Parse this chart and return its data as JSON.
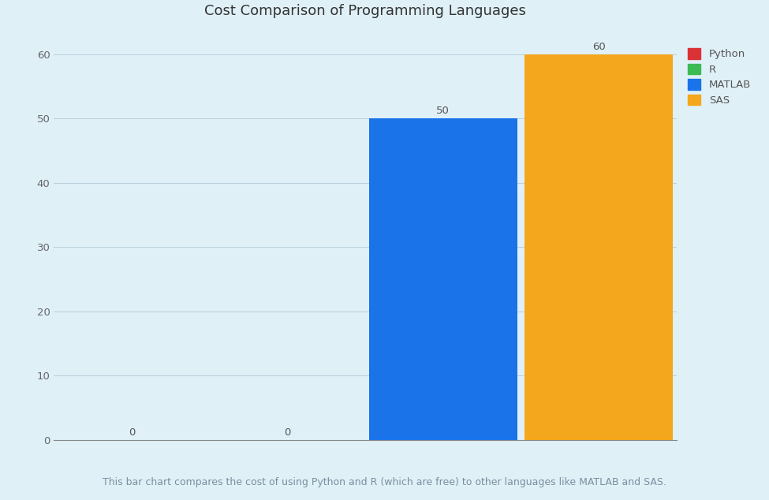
{
  "categories": [
    "Python",
    "R",
    "MATLAB",
    "SAS"
  ],
  "values": [
    0,
    0,
    50,
    60
  ],
  "bar_colors": [
    "#db3236",
    "#3cba54",
    "#1a73e8",
    "#f4a61d"
  ],
  "title": "Cost Comparison of Programming Languages",
  "title_fontsize": 13,
  "ylim": [
    0,
    63
  ],
  "yticks": [
    0,
    10,
    20,
    30,
    40,
    50,
    60
  ],
  "background_color": "#dff0f7",
  "grid_color": "#b8d0dc",
  "footnote": "This bar chart compares the cost of using Python and R (which are free) to other languages like MATLAB and SAS.",
  "legend_labels": [
    "Python",
    "R",
    "MATLAB",
    "SAS"
  ],
  "legend_colors": [
    "#db3236",
    "#3cba54",
    "#1a73e8",
    "#f4a61d"
  ]
}
